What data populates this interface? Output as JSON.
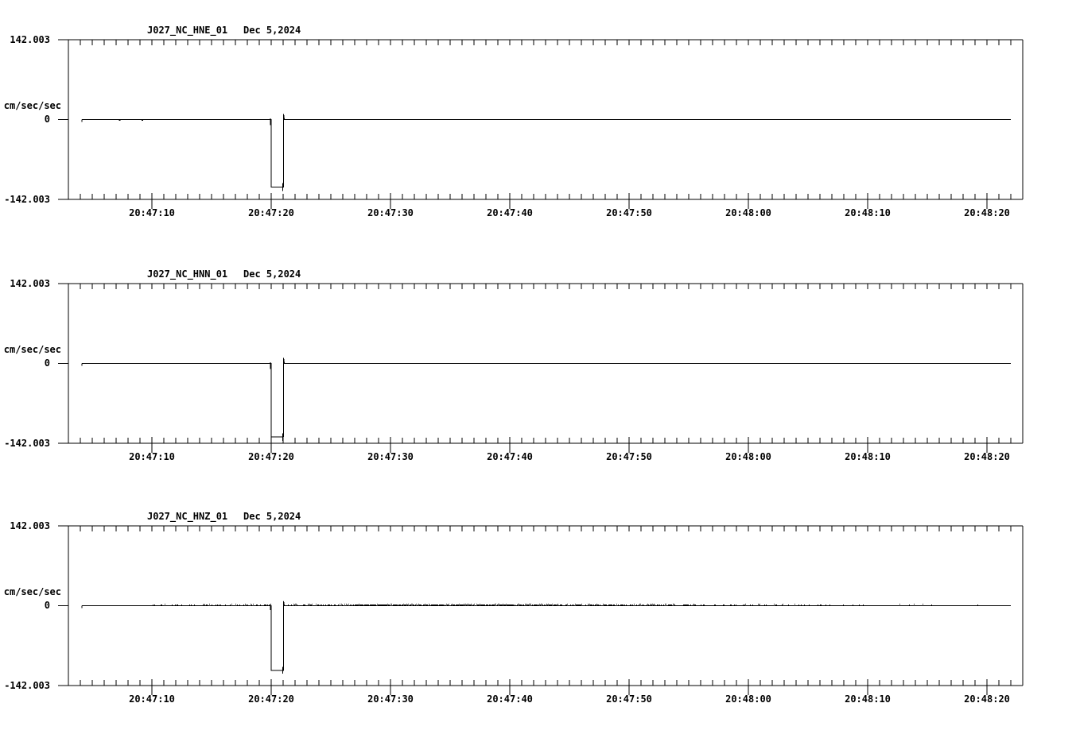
{
  "colors": {
    "background": "#ffffff",
    "ink": "#000000"
  },
  "chart_data": [
    {
      "type": "line",
      "title": "J027_NC_HNE_01",
      "date": "Dec 5,2024",
      "ylabel": "cm/sec/sec",
      "ylim": [
        -142.003,
        142.003
      ],
      "yticks": [
        {
          "value": 142.003,
          "label": "142.003"
        },
        {
          "value": 0,
          "label": "0"
        },
        {
          "value": -142.003,
          "label": "-142.003"
        }
      ],
      "x_axis": {
        "major_interval_s": 10,
        "minor_interval_s": 1,
        "window_seconds_after_20_47_00": [
          3,
          83
        ]
      },
      "xticks": [
        {
          "t": 10,
          "label": "20:47:10"
        },
        {
          "t": 20,
          "label": "20:47:20"
        },
        {
          "t": 30,
          "label": "20:47:30"
        },
        {
          "t": 40,
          "label": "20:47:40"
        },
        {
          "t": 50,
          "label": "20:47:50"
        },
        {
          "t": 60,
          "label": "20:48:00"
        },
        {
          "t": 70,
          "label": "20:48:10"
        },
        {
          "t": 80,
          "label": "20:48:20"
        }
      ],
      "series": {
        "name": "J027_NC_HNE_01",
        "points": [
          [
            4.13,
            0
          ],
          [
            20.0,
            0
          ],
          [
            20.0,
            -120
          ],
          [
            21.03,
            -120
          ],
          [
            21.03,
            10
          ],
          [
            21.1,
            0
          ],
          [
            82.0,
            0
          ]
        ],
        "marks": [
          {
            "type": "vtick",
            "t": 4.13,
            "v1": 0,
            "v2": -4
          },
          {
            "type": "dot",
            "t": 7.3
          },
          {
            "type": "dot",
            "t": 9.2
          },
          {
            "type": "vtick",
            "t": 19.93,
            "v1": 2,
            "v2": -10
          },
          {
            "type": "vtick",
            "t": 20.97,
            "v1": -113,
            "v2": -127
          }
        ]
      }
    },
    {
      "type": "line",
      "title": "J027_NC_HNN_01",
      "date": "Dec 5,2024",
      "ylabel": "cm/sec/sec",
      "ylim": [
        -142.003,
        142.003
      ],
      "yticks": [
        {
          "value": 142.003,
          "label": "142.003"
        },
        {
          "value": 0,
          "label": "0"
        },
        {
          "value": -142.003,
          "label": "-142.003"
        }
      ],
      "x_axis": {
        "major_interval_s": 10,
        "minor_interval_s": 1,
        "window_seconds_after_20_47_00": [
          3,
          83
        ]
      },
      "xticks": [
        {
          "t": 10,
          "label": "20:47:10"
        },
        {
          "t": 20,
          "label": "20:47:20"
        },
        {
          "t": 30,
          "label": "20:47:30"
        },
        {
          "t": 40,
          "label": "20:47:40"
        },
        {
          "t": 50,
          "label": "20:47:50"
        },
        {
          "t": 60,
          "label": "20:48:00"
        },
        {
          "t": 70,
          "label": "20:48:10"
        },
        {
          "t": 80,
          "label": "20:48:20"
        }
      ],
      "series": {
        "name": "J027_NC_HNN_01",
        "points": [
          [
            4.13,
            0
          ],
          [
            20.0,
            0
          ],
          [
            20.0,
            -131
          ],
          [
            21.03,
            -131
          ],
          [
            21.03,
            10
          ],
          [
            21.1,
            0
          ],
          [
            82.0,
            0
          ]
        ],
        "marks": [
          {
            "type": "vtick",
            "t": 4.13,
            "v1": 0,
            "v2": -4
          },
          {
            "type": "vtick",
            "t": 19.93,
            "v1": 2,
            "v2": -10
          },
          {
            "type": "vtick",
            "t": 20.97,
            "v1": -124,
            "v2": -138
          }
        ]
      }
    },
    {
      "type": "line",
      "title": "J027_NC_HNZ_01",
      "date": "Dec 5,2024",
      "ylabel": "cm/sec/sec",
      "ylim": [
        -142.003,
        142.003
      ],
      "yticks": [
        {
          "value": 142.003,
          "label": "142.003"
        },
        {
          "value": 0,
          "label": "0"
        },
        {
          "value": -142.003,
          "label": "-142.003"
        }
      ],
      "x_axis": {
        "major_interval_s": 10,
        "minor_interval_s": 1,
        "window_seconds_after_20_47_00": [
          3,
          83
        ]
      },
      "xticks": [
        {
          "t": 10,
          "label": "20:47:10"
        },
        {
          "t": 20,
          "label": "20:47:20"
        },
        {
          "t": 30,
          "label": "20:47:30"
        },
        {
          "t": 40,
          "label": "20:47:40"
        },
        {
          "t": 50,
          "label": "20:47:50"
        },
        {
          "t": 60,
          "label": "20:48:00"
        },
        {
          "t": 70,
          "label": "20:48:10"
        },
        {
          "t": 80,
          "label": "20:48:20"
        }
      ],
      "series": {
        "name": "J027_NC_HNZ_01",
        "points": [
          [
            4.13,
            0
          ],
          [
            20.0,
            0
          ],
          [
            20.0,
            -115
          ],
          [
            21.03,
            -115
          ],
          [
            21.03,
            8
          ],
          [
            21.1,
            0
          ],
          [
            82.0,
            0
          ]
        ],
        "marks": [
          {
            "type": "vtick",
            "t": 4.13,
            "v1": 0,
            "v2": -4
          },
          {
            "type": "vtick",
            "t": 19.93,
            "v1": 2,
            "v2": -8
          },
          {
            "type": "vtick",
            "t": 20.97,
            "v1": -109,
            "v2": -121
          }
        ]
      },
      "noise_bands": [
        {
          "from": 10,
          "to": 19.9,
          "p": 0.3
        },
        {
          "from": 21.3,
          "to": 27,
          "p": 0.5
        },
        {
          "from": 27,
          "to": 44,
          "p": 0.85
        },
        {
          "from": 44,
          "to": 56,
          "p": 0.5
        },
        {
          "from": 56,
          "to": 67,
          "p": 0.25
        },
        {
          "from": 67,
          "to": 82,
          "p": 0.06
        }
      ]
    }
  ]
}
